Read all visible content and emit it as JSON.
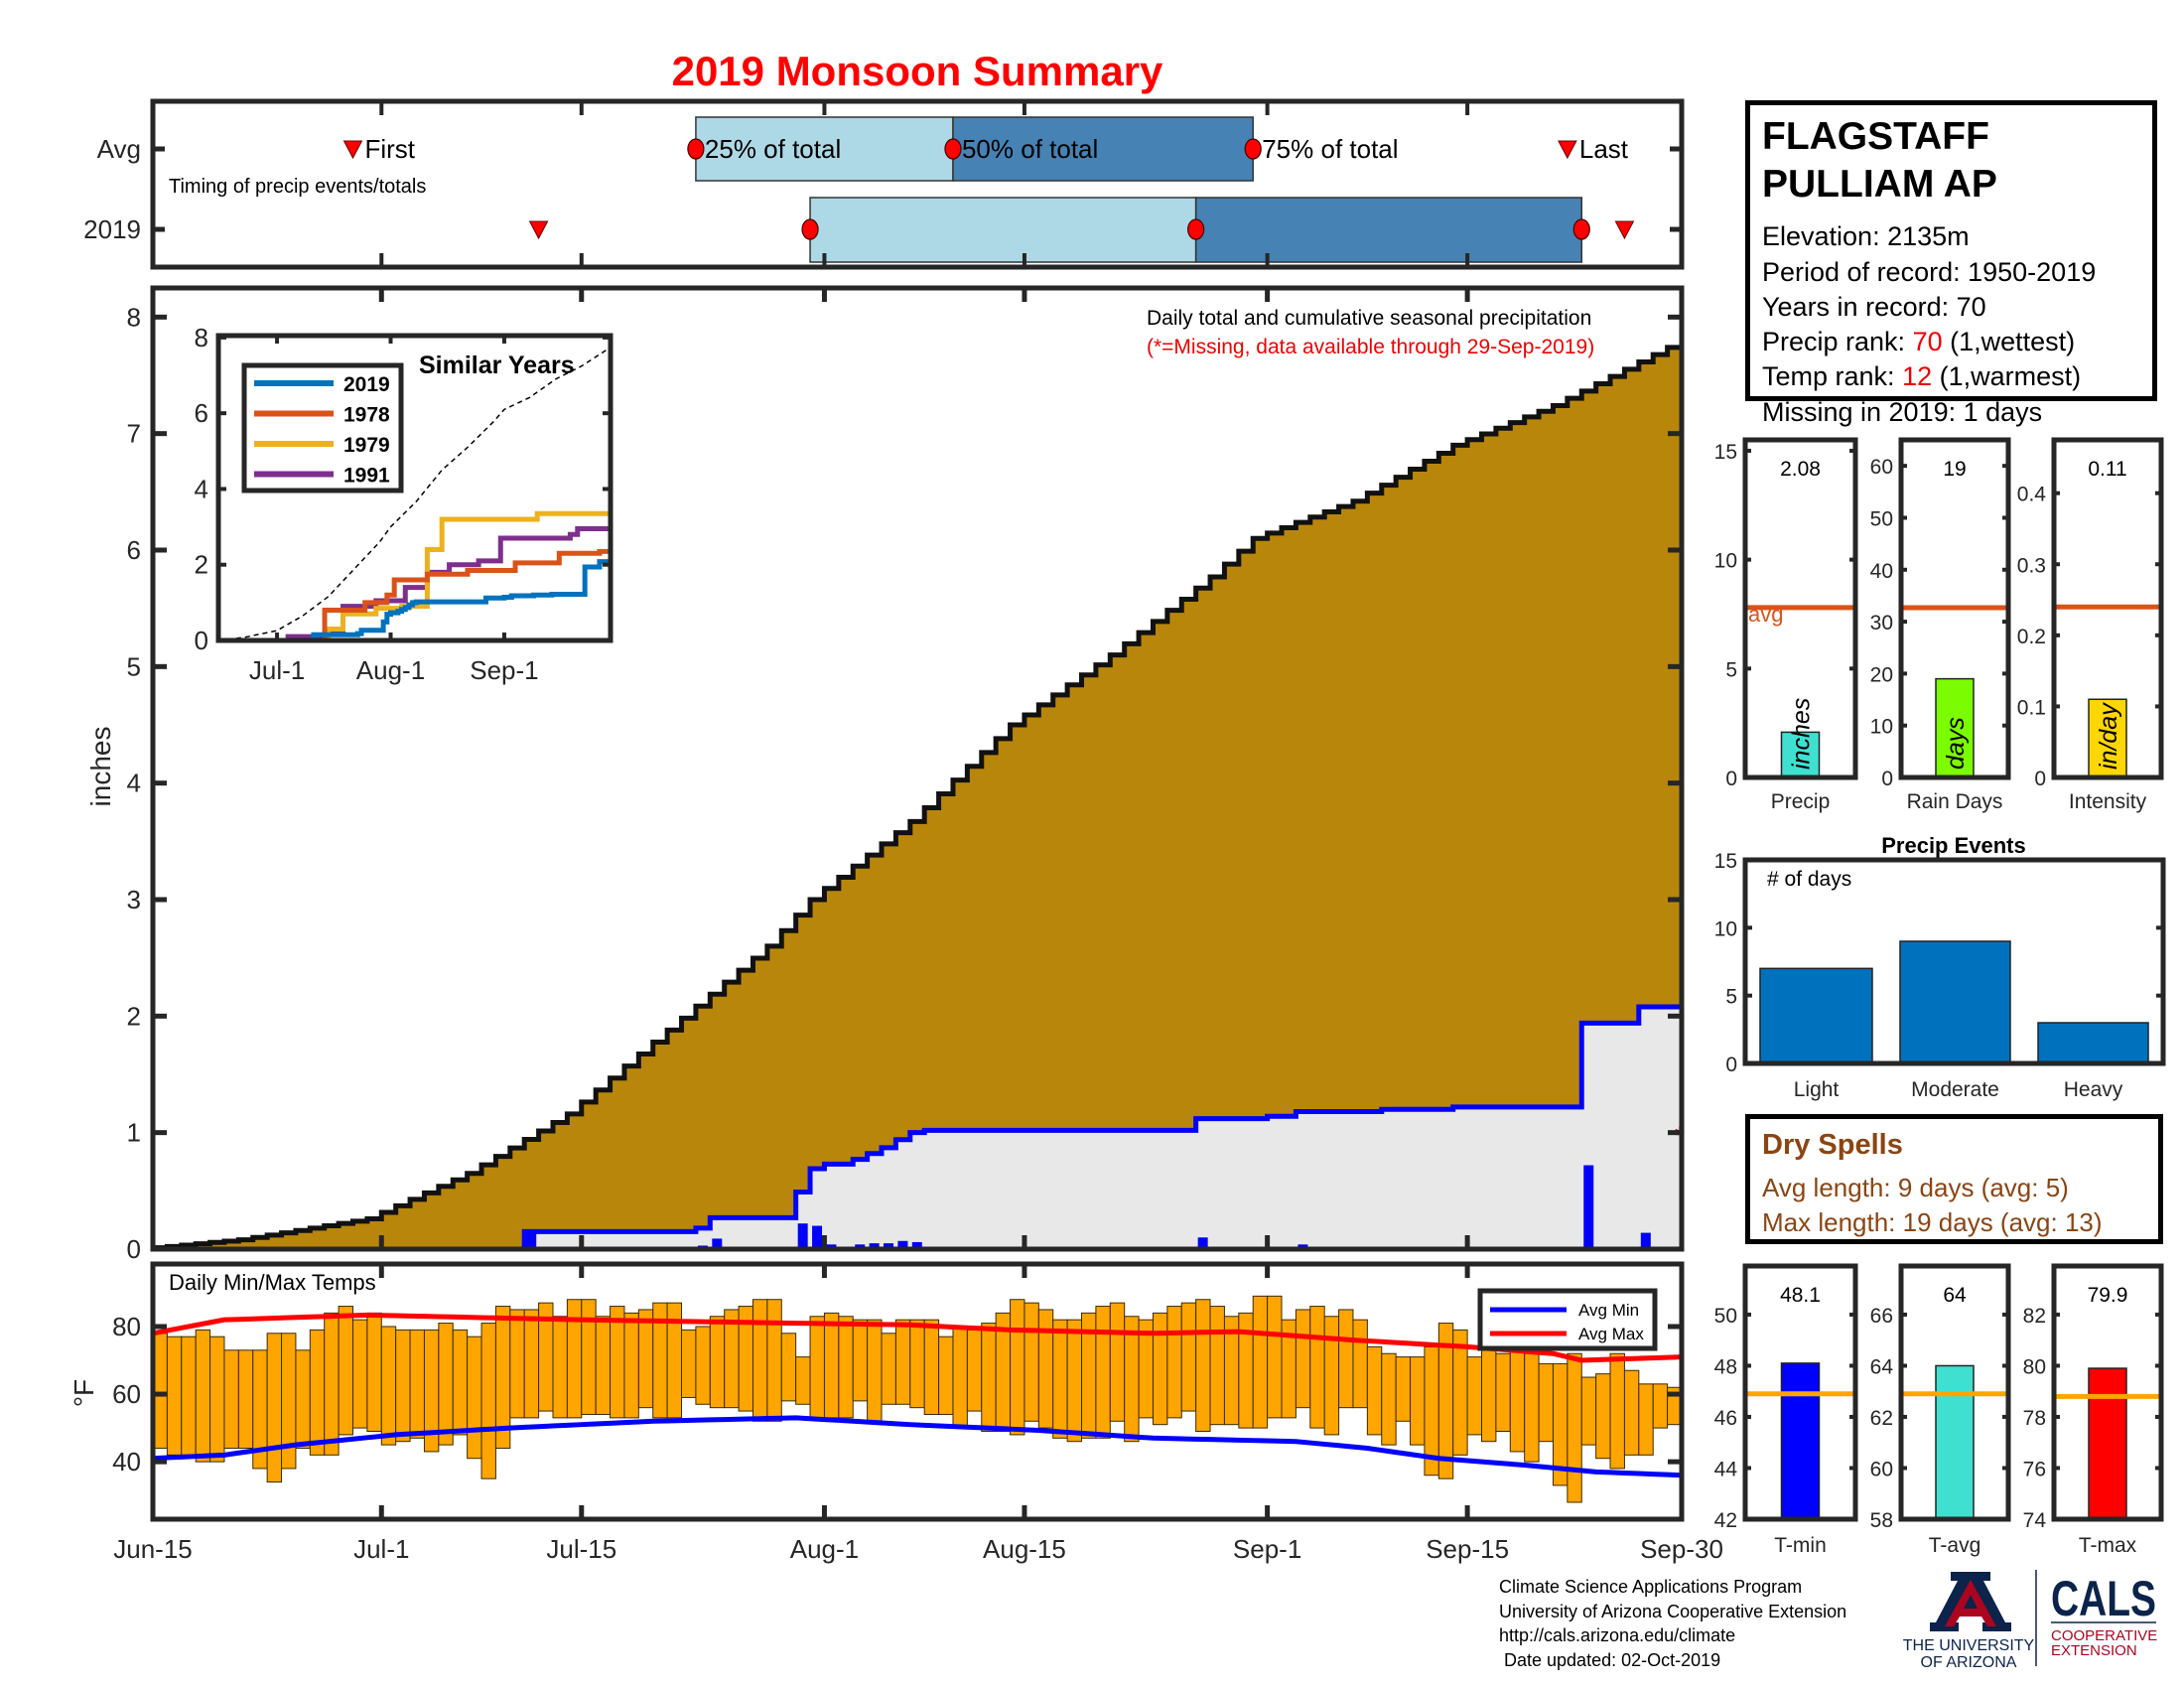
{
  "title": "2019 Monsoon Summary",
  "timing": {
    "caption": "Timing of precip events/totals",
    "xlim": [
      "Jun-15",
      "Sep-30"
    ],
    "marker_labels": {
      "first": "First",
      "p25": "25% of total",
      "p50": "50% of total",
      "p75": "75% of total",
      "last": "Last"
    },
    "rows": [
      {
        "label": "Avg",
        "first": "Jun-29",
        "p25": "Jul-23",
        "p50": "Aug-10",
        "p75": "Aug-31",
        "last": "Sep-22"
      },
      {
        "label": "2019",
        "first": "Jul-12",
        "p25": "Jul-31",
        "p50": "Aug-27",
        "p75": "Sep-23",
        "last": "Sep-26"
      }
    ],
    "colors": {
      "early_half": "#ADD8E6",
      "late_half": "#4682B4",
      "marker": "#FF0000"
    }
  },
  "station": {
    "name_line1": "FLAGSTAFF",
    "name_line2": "PULLIAM AP",
    "elevation": "Elevation: 2135m",
    "period": "Period of record: 1950-2019",
    "years": "Years in record: 70",
    "precip_rank_label": "Precip rank: ",
    "precip_rank": "70",
    "precip_rank_note": " (1,wettest)",
    "temp_rank_label": "Temp rank: ",
    "temp_rank": "12",
    "temp_rank_note": " (1,warmest)",
    "missing": "Missing in 2019: 1 days"
  },
  "dry_spells": {
    "title": "Dry Spells",
    "avg_length": "Avg length: 9 days (avg: 5)",
    "max_length": "Max length: 19 days (avg: 13)",
    "color": "#8B4513"
  },
  "footer": {
    "lines": [
      "Climate Science Applications Program",
      "University of Arizona Cooperative Extension",
      "http://cals.arizona.edu/climate",
      " Date updated: 02-Oct-2019"
    ]
  },
  "logos": {
    "ua_letter": "A",
    "ua_line1": "THE UNIVERSITY",
    "ua_line2": "OF ARIZONA",
    "cals": "CALS",
    "cals_line1": "COOPERATIVE",
    "cals_line2": "EXTENSION",
    "navy": "#0C234B",
    "red": "#AB0520"
  },
  "chart_data": [
    {
      "type": "area",
      "title": "Daily total and cumulative seasonal precipitation",
      "note": "(*=Missing, data available through 29-Sep-2019)",
      "ylabel": "inches",
      "xlim": [
        "Jun-15",
        "Sep-30"
      ],
      "ylim": [
        0,
        8.25
      ],
      "yticks": [
        0,
        1,
        2,
        3,
        4,
        5,
        6,
        7,
        8
      ],
      "avg_cumulative": [
        [
          "Jun-15",
          0
        ],
        [
          "Jun-22",
          0.08
        ],
        [
          "Jul-1",
          0.26
        ],
        [
          "Jul-8",
          0.65
        ],
        [
          "Jul-15",
          1.16
        ],
        [
          "Jul-22",
          1.88
        ],
        [
          "Jul-29",
          2.6
        ],
        [
          "Aug-1",
          3.0
        ],
        [
          "Aug-8",
          3.67
        ],
        [
          "Aug-15",
          4.5
        ],
        [
          "Aug-22",
          5.1
        ],
        [
          "Aug-29",
          5.77
        ],
        [
          "Sep-1",
          6.1
        ],
        [
          "Sep-8",
          6.42
        ],
        [
          "Sep-15",
          6.9
        ],
        [
          "Sep-22",
          7.24
        ],
        [
          "Sep-30",
          7.74
        ]
      ],
      "daily_2019": [
        [
          "Jul-11",
          0.15
        ],
        [
          "Jul-23",
          0.03
        ],
        [
          "Jul-24",
          0.09
        ],
        [
          "Jul-30",
          0.22
        ],
        [
          "Jul-31",
          0.2
        ],
        [
          "Aug-1",
          0.04
        ],
        [
          "Aug-3",
          0.04
        ],
        [
          "Aug-4",
          0.05
        ],
        [
          "Aug-5",
          0.05
        ],
        [
          "Aug-6",
          0.07
        ],
        [
          "Aug-7",
          0.06
        ],
        [
          "Aug-8",
          0.02
        ],
        [
          "Aug-27",
          0.1
        ],
        [
          "Sep-1",
          0.02
        ],
        [
          "Sep-3",
          0.04
        ],
        [
          "Sep-9",
          0.02
        ],
        [
          "Sep-14",
          0.02
        ],
        [
          "Sep-23",
          0.72
        ],
        [
          "Sep-27",
          0.14
        ]
      ],
      "missing": [
        {
          "date": "Sep-30",
          "value": 1.0,
          "symbol": "*"
        }
      ],
      "colors": {
        "avg_fill": "#B8860B",
        "cum_2019_fill": "#E8E8E8",
        "cum_2019_line": "#0000FF",
        "daily_bar": "#0000FF",
        "missing": "#CC0000"
      }
    },
    {
      "type": "line",
      "title": "Similar Years",
      "xlim": [
        "Jun-15",
        "Sep-30"
      ],
      "ylim": [
        0,
        8.05
      ],
      "yticks": [
        0,
        2,
        4,
        6,
        8
      ],
      "xticks": [
        "Jul-1",
        "Aug-1",
        "Sep-1"
      ],
      "reference": "average cumulative (dashed)",
      "series": [
        {
          "name": "2019",
          "color": "#0072BD",
          "points": [
            [
              "Jun-15",
              0
            ],
            [
              "Jul-11",
              0.15
            ],
            [
              "Jul-23",
              0.18
            ],
            [
              "Jul-24",
              0.27
            ],
            [
              "Jul-30",
              0.49
            ],
            [
              "Jul-31",
              0.69
            ],
            [
              "Aug-1",
              0.73
            ],
            [
              "Aug-3",
              0.77
            ],
            [
              "Aug-4",
              0.82
            ],
            [
              "Aug-5",
              0.87
            ],
            [
              "Aug-6",
              0.94
            ],
            [
              "Aug-7",
              1.0
            ],
            [
              "Aug-8",
              1.02
            ],
            [
              "Aug-27",
              1.12
            ],
            [
              "Sep-1",
              1.14
            ],
            [
              "Sep-3",
              1.18
            ],
            [
              "Sep-9",
              1.2
            ],
            [
              "Sep-14",
              1.22
            ],
            [
              "Sep-23",
              1.94
            ],
            [
              "Sep-27",
              2.08
            ]
          ]
        },
        {
          "name": "1978",
          "color": "#D95319",
          "points": [
            [
              "Jun-15",
              0
            ],
            [
              "Jul-14",
              0.8
            ],
            [
              "Jul-25",
              1.0
            ],
            [
              "Jul-31",
              1.2
            ],
            [
              "Aug-2",
              1.6
            ],
            [
              "Aug-11",
              1.75
            ],
            [
              "Aug-22",
              1.85
            ],
            [
              "Sep-4",
              2.05
            ],
            [
              "Sep-16",
              2.3
            ],
            [
              "Sep-27",
              2.35
            ]
          ]
        },
        {
          "name": "1979",
          "color": "#EDB120",
          "points": [
            [
              "Jun-15",
              0
            ],
            [
              "Jul-15",
              0.3
            ],
            [
              "Jul-19",
              0.7
            ],
            [
              "Jul-28",
              0.85
            ],
            [
              "Aug-4",
              0.9
            ],
            [
              "Aug-11",
              2.4
            ],
            [
              "Aug-15",
              3.2
            ],
            [
              "Sep-10",
              3.35
            ]
          ]
        },
        {
          "name": "1991",
          "color": "#7E2F8E",
          "points": [
            [
              "Jun-15",
              0
            ],
            [
              "Jul-4",
              0.1
            ],
            [
              "Jul-15",
              0.2
            ],
            [
              "Jul-19",
              0.9
            ],
            [
              "Jul-28",
              1.05
            ],
            [
              "Aug-5",
              1.4
            ],
            [
              "Aug-11",
              1.8
            ],
            [
              "Aug-17",
              2.0
            ],
            [
              "Aug-25",
              2.1
            ],
            [
              "Aug-31",
              2.7
            ],
            [
              "Sep-19",
              2.8
            ],
            [
              "Sep-21",
              2.95
            ]
          ]
        }
      ]
    },
    {
      "type": "bar",
      "title": "Daily Min/Max Temps",
      "ylabel": "°F",
      "xlim": [
        "Jun-15",
        "Sep-30"
      ],
      "ylim": [
        23,
        98.5
      ],
      "yticks": [
        40,
        60,
        80
      ],
      "xticks": [
        "Jun-15",
        "Jul-1",
        "Jul-15",
        "Aug-1",
        "Aug-15",
        "Sep-1",
        "Sep-15",
        "Sep-30"
      ],
      "first_date": "Jun-15",
      "daily_max": [
        78,
        77,
        77,
        79,
        77,
        73,
        73,
        73,
        78,
        78,
        73,
        79,
        84,
        86,
        82,
        84,
        80,
        79,
        79,
        79,
        81,
        79,
        77,
        81,
        86,
        85,
        85,
        87,
        83,
        88,
        88,
        83,
        86,
        84,
        85,
        87,
        87,
        79,
        80,
        83,
        85,
        86,
        88,
        88,
        78,
        71,
        83,
        84,
        83,
        82,
        82,
        78,
        82,
        82,
        82,
        77,
        80,
        79,
        81,
        84,
        88,
        87,
        85,
        82,
        82,
        84,
        86,
        87,
        83,
        82,
        84,
        86,
        87,
        88,
        86,
        83,
        84,
        89,
        89,
        82,
        85,
        86,
        83,
        85,
        82,
        74,
        72,
        71,
        71,
        74,
        81,
        79,
        71,
        74,
        72,
        74,
        72,
        69,
        69,
        72,
        65,
        66,
        72,
        67,
        63,
        63,
        62
      ],
      "daily_min": [
        44,
        42,
        42,
        40,
        40,
        44,
        44,
        38,
        34,
        38,
        44,
        42,
        42,
        48,
        50,
        49,
        45,
        46,
        47,
        43,
        45,
        48,
        41,
        35,
        44,
        53,
        53,
        55,
        53,
        53,
        54,
        54,
        53,
        53,
        56,
        53,
        53,
        59,
        57,
        56,
        56,
        55,
        52,
        52,
        58,
        57,
        53,
        53,
        53,
        58,
        52,
        57,
        57,
        56,
        54,
        54,
        50,
        55,
        49,
        49,
        48,
        52,
        50,
        47,
        46,
        47,
        47,
        52,
        46,
        53,
        51,
        53,
        55,
        49,
        51,
        51,
        50,
        50,
        53,
        53,
        56,
        50,
        48,
        56,
        56,
        48,
        45,
        52,
        45,
        36,
        35,
        42,
        48,
        46,
        49,
        43,
        40,
        46,
        33,
        28,
        45,
        41,
        38,
        42,
        42,
        50,
        51
      ],
      "avg_lines": [
        {
          "name": "Avg Min",
          "color": "#0000FF",
          "points": [
            [
              "Jun-15",
              41
            ],
            [
              "Jun-20",
              42
            ],
            [
              "Jun-25",
              45
            ],
            [
              "Jul-2",
              48
            ],
            [
              "Jul-10",
              50
            ],
            [
              "Jul-20",
              52
            ],
            [
              "Jul-30",
              53
            ],
            [
              "Aug-7",
              51
            ],
            [
              "Aug-16",
              49.3
            ],
            [
              "Aug-24",
              47
            ],
            [
              "Sep-3",
              46
            ],
            [
              "Sep-8",
              44
            ],
            [
              "Sep-13",
              41
            ],
            [
              "Sep-19",
              39
            ],
            [
              "Sep-24",
              37
            ],
            [
              "Sep-30",
              36
            ]
          ]
        },
        {
          "name": "Avg Max",
          "color": "#FF0000",
          "points": [
            [
              "Jun-15",
              78
            ],
            [
              "Jun-20",
              82
            ],
            [
              "Jun-30",
              83.4
            ],
            [
              "Jul-15",
              82
            ],
            [
              "Jul-30",
              81
            ],
            [
              "Aug-7",
              80.5
            ],
            [
              "Aug-14",
              79
            ],
            [
              "Aug-24",
              78
            ],
            [
              "Aug-30",
              78.5
            ],
            [
              "Sep-7",
              76
            ],
            [
              "Sep-15",
              74
            ],
            [
              "Sep-21",
              72
            ],
            [
              "Sep-23",
              70
            ],
            [
              "Sep-30",
              71
            ]
          ]
        }
      ],
      "bar_color": "#FFA500",
      "legend": "top-right"
    },
    {
      "type": "bar",
      "category": "Precip",
      "value": 2.08,
      "value_label": "2.08",
      "avg": 7.8,
      "avg_label": "avg",
      "unit": "inches",
      "ylim": [
        0,
        15.5
      ],
      "yticks": [
        0,
        5,
        10,
        15
      ],
      "color": "#40E0D0",
      "avg_color": "#D95319"
    },
    {
      "type": "bar",
      "category": "Rain Days",
      "value": 19,
      "value_label": "19",
      "avg": 32.7,
      "unit": "days",
      "ylim": [
        0,
        65
      ],
      "yticks": [
        0,
        10,
        20,
        30,
        40,
        50,
        60
      ],
      "color": "#7CFC00",
      "avg_color": "#D95319"
    },
    {
      "type": "bar",
      "category": "Intensity",
      "value": 0.11,
      "value_label": "0.11",
      "avg": 0.24,
      "unit": "in/day",
      "ylim": [
        0,
        0.475
      ],
      "yticks": [
        0,
        0.1,
        0.2,
        0.3,
        0.4
      ],
      "ytick_labels": [
        "0",
        "0.1",
        "0.2",
        "0.3",
        "0.4"
      ],
      "color": "#FFD700",
      "avg_color": "#D95319"
    },
    {
      "type": "bar",
      "title": "Precip Events",
      "annotation": "# of days",
      "categories": [
        "Light",
        "Moderate",
        "Heavy"
      ],
      "values": [
        7,
        9,
        3
      ],
      "ylim": [
        0,
        15
      ],
      "yticks": [
        0,
        5,
        10,
        15
      ],
      "color": "#0072BD"
    },
    {
      "type": "bar",
      "category": "T-min",
      "value": 48.1,
      "value_label": "48.1",
      "avg": 46.9,
      "ylim": [
        42,
        51.9
      ],
      "yticks": [
        42,
        44,
        46,
        48,
        50
      ],
      "color": "#0000FF",
      "avg_color": "#FFA500"
    },
    {
      "type": "bar",
      "category": "T-avg",
      "value": 64,
      "value_label": "64",
      "avg": 62.9,
      "ylim": [
        58,
        67.9
      ],
      "yticks": [
        58,
        60,
        62,
        64,
        66
      ],
      "color": "#40E0D0",
      "avg_color": "#FFA500"
    },
    {
      "type": "bar",
      "category": "T-max",
      "value": 79.9,
      "value_label": "79.9",
      "avg": 78.8,
      "ylim": [
        74,
        83.9
      ],
      "yticks": [
        74,
        76,
        78,
        80,
        82
      ],
      "color": "#FF0000",
      "avg_color": "#FFA500"
    }
  ]
}
